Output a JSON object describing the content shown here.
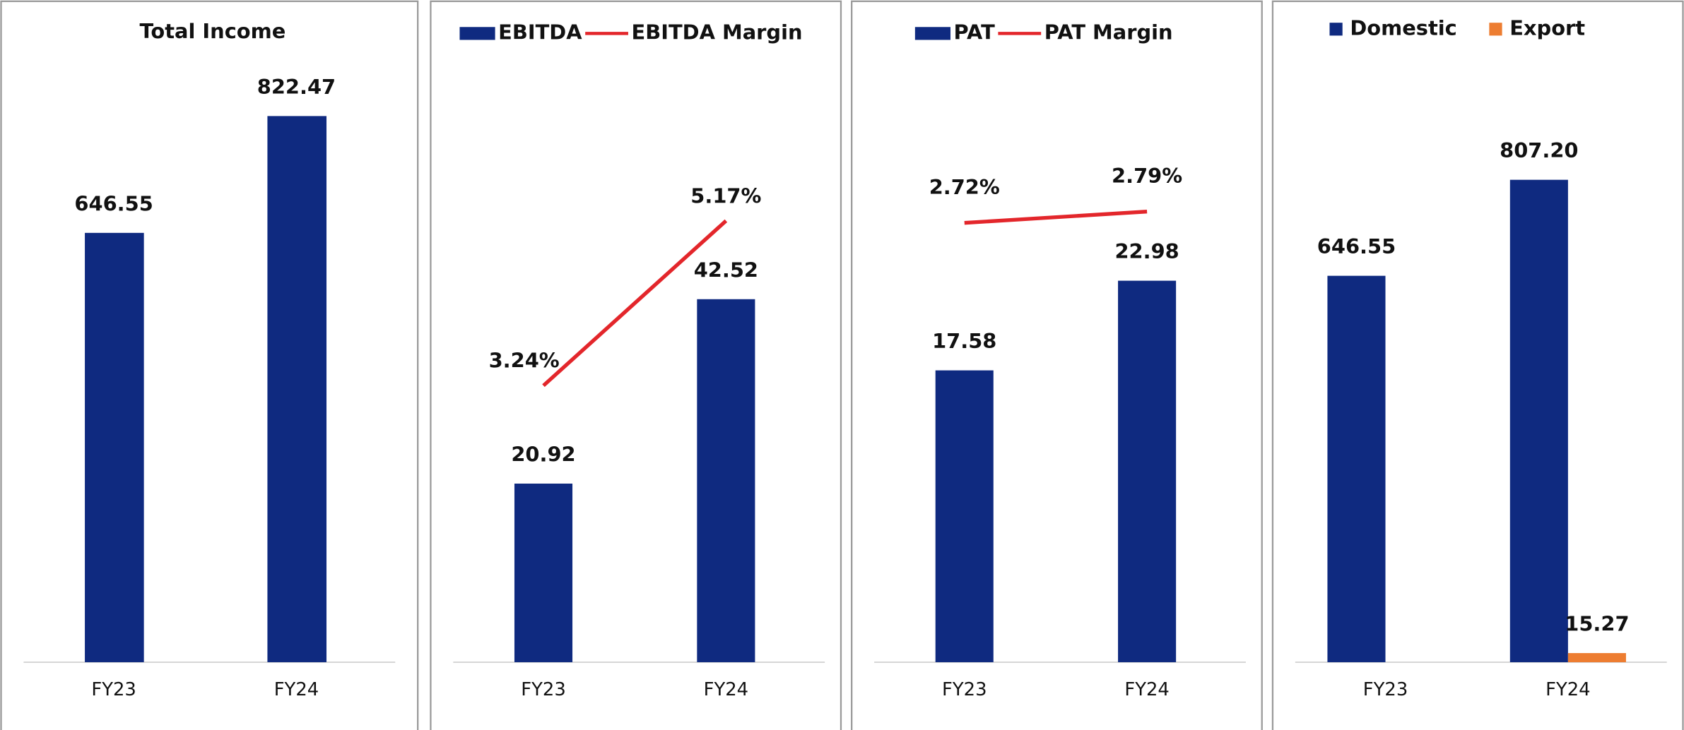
{
  "chart_data": [
    {
      "type": "bar",
      "title": "Total Income",
      "categories": [
        "FY23",
        "FY24"
      ],
      "values": [
        646.55,
        822.47
      ],
      "color": "#0f2a80",
      "ylim": [
        0,
        900
      ]
    },
    {
      "type": "combo",
      "categories": [
        "FY23",
        "FY24"
      ],
      "series": [
        {
          "name": "EBITDA",
          "color": "#0f2a80",
          "values": [
            20.92,
            42.52
          ]
        },
        {
          "name": "EBITDA Margin",
          "color": "#e3262b",
          "values": [
            3.24,
            5.17
          ],
          "value_labels": [
            "3.24%",
            "5.17%"
          ],
          "axis": "y2"
        }
      ],
      "ylim": [
        0,
        70
      ],
      "y2lim": [
        0,
        7
      ]
    },
    {
      "type": "combo",
      "categories": [
        "FY23",
        "FY24"
      ],
      "series": [
        {
          "name": "PAT",
          "color": "#0f2a80",
          "values": [
            17.58,
            22.98
          ]
        },
        {
          "name": "PAT Margin",
          "color": "#e3262b",
          "values": [
            2.72,
            2.79
          ],
          "value_labels": [
            "2.72%",
            "2.79%"
          ],
          "axis": "y2"
        }
      ],
      "ylim": [
        0,
        36
      ],
      "y2lim": [
        0,
        3.7
      ]
    },
    {
      "type": "bar",
      "categories": [
        "FY23",
        "FY24"
      ],
      "series": [
        {
          "name": "Domestic",
          "color": "#0f2a80",
          "values": [
            646.55,
            807.2
          ],
          "value_labels": [
            "646.55",
            "807.20"
          ]
        },
        {
          "name": "Export",
          "color": "#ed7d31",
          "values": [
            null,
            15.27
          ]
        }
      ],
      "ylim": [
        0,
        1000
      ]
    }
  ]
}
